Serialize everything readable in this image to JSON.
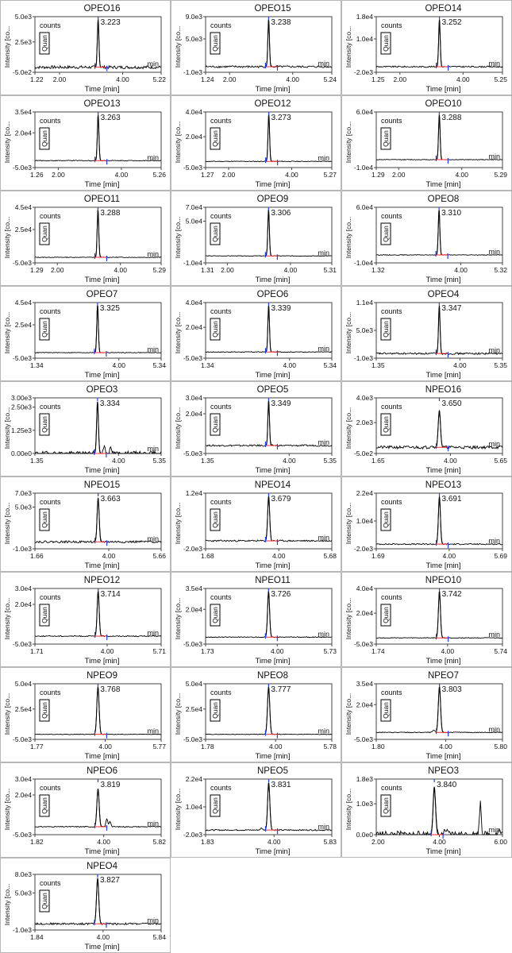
{
  "colors": {
    "trace": "#000000",
    "frame": "#444444",
    "baseline": "#ff2a2a",
    "marker": "#1f3fff"
  },
  "common": {
    "ylabel": "Intensity [co...",
    "xlabel": "Time [min]",
    "counts_label": "counts",
    "quan_label": "Quan",
    "unit_label": "min"
  },
  "chart_data": [
    {
      "type": "line",
      "title": "OPEO16",
      "xlim": [
        1.22,
        5.22
      ],
      "x_ticks": [
        "1.22",
        "2.00",
        "4.00",
        "5.22"
      ],
      "y_ticks": [
        "5.0e3",
        "2.5e3",
        "-5.0e2"
      ],
      "ylim": [
        -500,
        5000
      ],
      "peak_time": 3.223,
      "peak_label": "3.223",
      "peak_height": 4750,
      "peak_width": 0.035,
      "noise": 150,
      "extra_peaks": []
    },
    {
      "type": "line",
      "title": "OPEO15",
      "xlim": [
        1.24,
        5.24
      ],
      "x_ticks": [
        "1.24",
        "2.00",
        "4.00",
        "5.24"
      ],
      "y_ticks": [
        "9.0e3",
        "5.0e3",
        "-1.0e3"
      ],
      "ylim": [
        -1000,
        9000
      ],
      "peak_time": 3.238,
      "peak_label": "3.238",
      "peak_height": 8500,
      "peak_width": 0.035,
      "noise": 180,
      "extra_peaks": []
    },
    {
      "type": "line",
      "title": "OPEO14",
      "xlim": [
        1.25,
        5.25
      ],
      "x_ticks": [
        "1.25",
        "2.00",
        "4.00",
        "5.25"
      ],
      "y_ticks": [
        "1.8e4",
        "1.0e4",
        "-2.0e3"
      ],
      "ylim": [
        -2000,
        18000
      ],
      "peak_time": 3.252,
      "peak_label": "3.252",
      "peak_height": 17000,
      "peak_width": 0.035,
      "noise": 250,
      "extra_peaks": []
    },
    {
      "type": "line",
      "title": "OPEO13",
      "xlim": [
        1.26,
        5.26
      ],
      "x_ticks": [
        "1.26",
        "2.00",
        "4.00",
        "5.26"
      ],
      "y_ticks": [
        "3.5e4",
        "2.0e4",
        "-5.0e3"
      ],
      "ylim": [
        -5000,
        35000
      ],
      "peak_time": 3.263,
      "peak_label": "3.263",
      "peak_height": 33000,
      "peak_width": 0.035,
      "noise": 300,
      "extra_peaks": []
    },
    {
      "type": "line",
      "title": "OPEO12",
      "xlim": [
        1.27,
        5.27
      ],
      "x_ticks": [
        "1.27",
        "2.00",
        "4.00",
        "5.27"
      ],
      "y_ticks": [
        "4.0e4",
        "2.0e4",
        "-5.0e3"
      ],
      "ylim": [
        -5000,
        40000
      ],
      "peak_time": 3.273,
      "peak_label": "3.273",
      "peak_height": 38000,
      "peak_width": 0.035,
      "noise": 300,
      "extra_peaks": []
    },
    {
      "type": "line",
      "title": "OPEO10",
      "xlim": [
        1.29,
        5.29
      ],
      "x_ticks": [
        "1.29",
        "2.00",
        "4.00",
        "5.29"
      ],
      "y_ticks": [
        "6.0e4",
        "-1.0e4"
      ],
      "ylim": [
        -10000,
        60000
      ],
      "peak_time": 3.288,
      "peak_label": "3.288",
      "peak_height": 57000,
      "peak_width": 0.035,
      "noise": 400,
      "extra_peaks": []
    },
    {
      "type": "line",
      "title": "OPEO11",
      "xlim": [
        1.29,
        5.29
      ],
      "x_ticks": [
        "1.29",
        "2.00",
        "4.00",
        "5.29"
      ],
      "y_ticks": [
        "4.5e4",
        "2.5e4",
        "-5.0e3"
      ],
      "ylim": [
        -5000,
        45000
      ],
      "peak_time": 3.288,
      "peak_label": "3.288",
      "peak_height": 43000,
      "peak_width": 0.035,
      "noise": 300,
      "extra_peaks": []
    },
    {
      "type": "line",
      "title": "OPEO9",
      "xlim": [
        1.31,
        5.31
      ],
      "x_ticks": [
        "1.31",
        "2.00",
        "4.00",
        "5.31"
      ],
      "y_ticks": [
        "7.0e4",
        "5.0e4",
        "-1.0e4"
      ],
      "ylim": [
        -10000,
        70000
      ],
      "peak_time": 3.306,
      "peak_label": "3.306",
      "peak_height": 67000,
      "peak_width": 0.035,
      "noise": 400,
      "extra_peaks": []
    },
    {
      "type": "line",
      "title": "OPEO8",
      "xlim": [
        1.32,
        5.32
      ],
      "x_ticks": [
        "1.32",
        "4.00",
        "5.32"
      ],
      "y_ticks": [
        "6.0e4",
        "-1.0e4"
      ],
      "ylim": [
        -10000,
        60000
      ],
      "peak_time": 3.31,
      "peak_label": "3.310",
      "peak_height": 57000,
      "peak_width": 0.035,
      "noise": 400,
      "extra_peaks": []
    },
    {
      "type": "line",
      "title": "OPEO7",
      "xlim": [
        1.34,
        5.34
      ],
      "x_ticks": [
        "1.34",
        "4.00",
        "5.34"
      ],
      "y_ticks": [
        "4.5e4",
        "2.5e4",
        "-5.0e3"
      ],
      "ylim": [
        -5000,
        45000
      ],
      "peak_time": 3.325,
      "peak_label": "3.325",
      "peak_height": 43000,
      "peak_width": 0.035,
      "noise": 300,
      "extra_peaks": []
    },
    {
      "type": "line",
      "title": "OPEO6",
      "xlim": [
        1.34,
        5.34
      ],
      "x_ticks": [
        "1.34",
        "4.00",
        "5.34"
      ],
      "y_ticks": [
        "4.0e4",
        "2.0e4",
        "-5.0e3"
      ],
      "ylim": [
        -5000,
        40000
      ],
      "peak_time": 3.339,
      "peak_label": "3.339",
      "peak_height": 38000,
      "peak_width": 0.035,
      "noise": 300,
      "extra_peaks": []
    },
    {
      "type": "line",
      "title": "OPEO4",
      "xlim": [
        1.35,
        5.35
      ],
      "x_ticks": [
        "1.35",
        "4.00",
        "5.35"
      ],
      "y_ticks": [
        "1.1e4",
        "5.0e3",
        "-1.0e3"
      ],
      "ylim": [
        -1000,
        11000
      ],
      "peak_time": 3.347,
      "peak_label": "3.347",
      "peak_height": 10300,
      "peak_width": 0.035,
      "noise": 200,
      "extra_peaks": []
    },
    {
      "type": "line",
      "title": "OPEO3",
      "xlim": [
        1.35,
        5.35
      ],
      "x_ticks": [
        "1.35",
        "4.00",
        "5.35"
      ],
      "y_ticks": [
        "3.00e3",
        "2.50e3",
        "1.25e3",
        "0.00e0"
      ],
      "ylim": [
        0,
        3000
      ],
      "peak_time": 3.334,
      "peak_label": "3.334",
      "peak_height": 2800,
      "peak_width": 0.04,
      "noise": 120,
      "extra_peaks": [
        [
          3.55,
          450,
          0.04
        ],
        [
          3.75,
          250,
          0.05
        ]
      ]
    },
    {
      "type": "line",
      "title": "OPEO5",
      "xlim": [
        1.35,
        5.35
      ],
      "x_ticks": [
        "1.35",
        "4.00",
        "5.35"
      ],
      "y_ticks": [
        "3.0e4",
        "2.0e4",
        "-5.0e3"
      ],
      "ylim": [
        -5000,
        30000
      ],
      "peak_time": 3.349,
      "peak_label": "3.349",
      "peak_height": 28500,
      "peak_width": 0.035,
      "noise": 500,
      "extra_peaks": []
    },
    {
      "type": "line",
      "title": "NPEO16",
      "xlim": [
        1.65,
        5.65
      ],
      "x_ticks": [
        "1.65",
        "4.00",
        "5.65"
      ],
      "y_ticks": [
        "4.0e3",
        "2.0e3",
        "-5.0e2"
      ],
      "ylim": [
        -500,
        4000
      ],
      "peak_time": 3.65,
      "peak_label": "3.650",
      "peak_height": 3000,
      "peak_width": 0.05,
      "noise": 120,
      "extra_peaks": [
        [
          3.4,
          180,
          0.05
        ]
      ]
    },
    {
      "type": "line",
      "title": "NPEO15",
      "xlim": [
        1.66,
        5.66
      ],
      "x_ticks": [
        "1.66",
        "4.00",
        "5.66"
      ],
      "y_ticks": [
        "7.0e3",
        "5.0e3",
        "-1.0e3"
      ],
      "ylim": [
        -1000,
        7000
      ],
      "peak_time": 3.663,
      "peak_label": "3.663",
      "peak_height": 6300,
      "peak_width": 0.045,
      "noise": 150,
      "extra_peaks": []
    },
    {
      "type": "line",
      "title": "NPEO14",
      "xlim": [
        1.68,
        5.68
      ],
      "x_ticks": [
        "1.68",
        "4.00",
        "5.68"
      ],
      "y_ticks": [
        "1.2e4",
        "-2.0e3"
      ],
      "ylim": [
        -2000,
        12000
      ],
      "peak_time": 3.679,
      "peak_label": "3.679",
      "peak_height": 11300,
      "peak_width": 0.045,
      "noise": 200,
      "extra_peaks": []
    },
    {
      "type": "line",
      "title": "NPEO13",
      "xlim": [
        1.69,
        5.69
      ],
      "x_ticks": [
        "1.69",
        "4.00",
        "5.69"
      ],
      "y_ticks": [
        "2.2e4",
        "1.0e4",
        "-2.0e3"
      ],
      "ylim": [
        -2000,
        22000
      ],
      "peak_time": 3.691,
      "peak_label": "3.691",
      "peak_height": 20500,
      "peak_width": 0.045,
      "noise": 250,
      "extra_peaks": []
    },
    {
      "type": "line",
      "title": "NPEO12",
      "xlim": [
        1.71,
        5.71
      ],
      "x_ticks": [
        "1.71",
        "4.00",
        "5.71"
      ],
      "y_ticks": [
        "3.0e4",
        "2.0e4",
        "-5.0e3"
      ],
      "ylim": [
        -5000,
        30000
      ],
      "peak_time": 3.714,
      "peak_label": "3.714",
      "peak_height": 28500,
      "peak_width": 0.045,
      "noise": 300,
      "extra_peaks": []
    },
    {
      "type": "line",
      "title": "NPEO11",
      "xlim": [
        1.73,
        5.73
      ],
      "x_ticks": [
        "1.73",
        "4.00",
        "5.73"
      ],
      "y_ticks": [
        "3.5e4",
        "2.0e4",
        "-5.0e3"
      ],
      "ylim": [
        -5000,
        35000
      ],
      "peak_time": 3.726,
      "peak_label": "3.726",
      "peak_height": 33000,
      "peak_width": 0.045,
      "noise": 300,
      "extra_peaks": []
    },
    {
      "type": "line",
      "title": "NPEO10",
      "xlim": [
        1.74,
        5.74
      ],
      "x_ticks": [
        "1.74",
        "4.00",
        "5.74"
      ],
      "y_ticks": [
        "4.0e4",
        "2.0e4",
        "-5.0e3"
      ],
      "ylim": [
        -5000,
        40000
      ],
      "peak_time": 3.742,
      "peak_label": "3.742",
      "peak_height": 38000,
      "peak_width": 0.045,
      "noise": 300,
      "extra_peaks": []
    },
    {
      "type": "line",
      "title": "NPEO9",
      "xlim": [
        1.77,
        5.77
      ],
      "x_ticks": [
        "1.77",
        "4.00",
        "5.77"
      ],
      "y_ticks": [
        "5.0e4",
        "2.5e4",
        "-5.0e3"
      ],
      "ylim": [
        -5000,
        50000
      ],
      "peak_time": 3.768,
      "peak_label": "3.768",
      "peak_height": 47000,
      "peak_width": 0.05,
      "noise": 300,
      "extra_peaks": []
    },
    {
      "type": "line",
      "title": "NPEO8",
      "xlim": [
        1.78,
        5.78
      ],
      "x_ticks": [
        "1.78",
        "4.00",
        "5.78"
      ],
      "y_ticks": [
        "5.0e4",
        "2.5e4",
        "-5.0e3"
      ],
      "ylim": [
        -5000,
        50000
      ],
      "peak_time": 3.777,
      "peak_label": "3.777",
      "peak_height": 47000,
      "peak_width": 0.05,
      "noise": 300,
      "extra_peaks": []
    },
    {
      "type": "line",
      "title": "NPEO7",
      "xlim": [
        1.8,
        5.8
      ],
      "x_ticks": [
        "1.80",
        "4.00",
        "5.80"
      ],
      "y_ticks": [
        "3.5e4",
        "2.0e4",
        "-5.0e3"
      ],
      "ylim": [
        -5000,
        35000
      ],
      "peak_time": 3.803,
      "peak_label": "3.803",
      "peak_height": 33000,
      "peak_width": 0.05,
      "noise": 300,
      "extra_peaks": [
        [
          3.62,
          1500,
          0.05
        ]
      ]
    },
    {
      "type": "line",
      "title": "NPEO6",
      "xlim": [
        1.82,
        5.82
      ],
      "x_ticks": [
        "1.82",
        "4.00",
        "5.82"
      ],
      "y_ticks": [
        "3.0e4",
        "2.0e4",
        "-5.0e3"
      ],
      "ylim": [
        -5000,
        30000
      ],
      "peak_time": 3.819,
      "peak_label": "3.819",
      "peak_height": 24000,
      "peak_width": 0.05,
      "noise": 300,
      "extra_peaks": [
        [
          4.1,
          5000,
          0.04
        ],
        [
          4.2,
          3500,
          0.04
        ]
      ]
    },
    {
      "type": "line",
      "title": "NPEO5",
      "xlim": [
        1.83,
        5.83
      ],
      "x_ticks": [
        "1.83",
        "4.00",
        "5.83"
      ],
      "y_ticks": [
        "2.2e4",
        "1.0e4",
        "-2.0e3"
      ],
      "ylim": [
        -2000,
        22000
      ],
      "peak_time": 3.831,
      "peak_label": "3.831",
      "peak_height": 20500,
      "peak_width": 0.05,
      "noise": 250,
      "extra_peaks": [
        [
          3.6,
          800,
          0.05
        ]
      ]
    },
    {
      "type": "line",
      "title": "NPEO3",
      "xlim": [
        2.0,
        6.0
      ],
      "x_ticks": [
        "2.00",
        "4.00",
        "6.00"
      ],
      "y_ticks": [
        "1.8e3",
        "1.0e3",
        "0.0e0"
      ],
      "ylim": [
        0,
        1800
      ],
      "peak_time": 3.84,
      "peak_label": "3.840",
      "peak_height": 1550,
      "peak_width": 0.055,
      "noise": 120,
      "extra_peaks": [
        [
          5.3,
          1100,
          0.04
        ],
        [
          4.2,
          150,
          0.05
        ],
        [
          5.9,
          150,
          0.05
        ]
      ]
    },
    {
      "type": "line",
      "title": "NPEO4",
      "xlim": [
        1.84,
        5.84
      ],
      "x_ticks": [
        "1.84",
        "4.00",
        "5.84"
      ],
      "y_ticks": [
        "8.0e3",
        "5.0e3",
        "-1.0e3"
      ],
      "ylim": [
        -1000,
        8000
      ],
      "peak_time": 3.827,
      "peak_label": "3.827",
      "peak_height": 7400,
      "peak_width": 0.05,
      "noise": 150,
      "extra_peaks": []
    }
  ]
}
